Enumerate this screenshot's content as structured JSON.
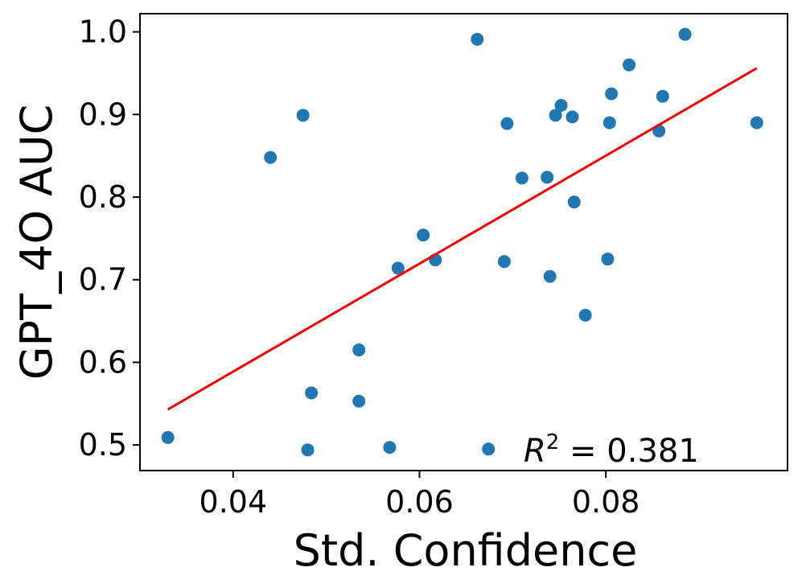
{
  "chart_data": {
    "type": "scatter",
    "xlabel": "Std. Confidence",
    "ylabel": "GPT_4O AUC",
    "xlim": [
      0.03,
      0.0995
    ],
    "ylim": [
      0.469,
      1.022
    ],
    "x_ticks": [
      0.04,
      0.06,
      0.08
    ],
    "x_tick_labels": [
      "0.04",
      "0.06",
      "0.08"
    ],
    "y_ticks": [
      0.5,
      0.6,
      0.7,
      0.8,
      0.9,
      1.0
    ],
    "y_tick_labels": [
      "0.5",
      "0.6",
      "0.7",
      "0.8",
      "0.9",
      "1.0"
    ],
    "grid": false,
    "point_color": "#1f77b4",
    "fit_color": "#ff0000",
    "points": [
      {
        "x": 0.033,
        "y": 0.509
      },
      {
        "x": 0.044,
        "y": 0.848
      },
      {
        "x": 0.0475,
        "y": 0.899
      },
      {
        "x": 0.048,
        "y": 0.494
      },
      {
        "x": 0.0484,
        "y": 0.563
      },
      {
        "x": 0.0535,
        "y": 0.615
      },
      {
        "x": 0.0535,
        "y": 0.553
      },
      {
        "x": 0.0568,
        "y": 0.497
      },
      {
        "x": 0.0577,
        "y": 0.714
      },
      {
        "x": 0.0604,
        "y": 0.754
      },
      {
        "x": 0.0617,
        "y": 0.724
      },
      {
        "x": 0.0662,
        "y": 0.991
      },
      {
        "x": 0.0674,
        "y": 0.495
      },
      {
        "x": 0.0691,
        "y": 0.722
      },
      {
        "x": 0.0694,
        "y": 0.889
      },
      {
        "x": 0.071,
        "y": 0.823
      },
      {
        "x": 0.0737,
        "y": 0.824
      },
      {
        "x": 0.074,
        "y": 0.704
      },
      {
        "x": 0.0746,
        "y": 0.899
      },
      {
        "x": 0.0752,
        "y": 0.911
      },
      {
        "x": 0.0764,
        "y": 0.897
      },
      {
        "x": 0.0766,
        "y": 0.794
      },
      {
        "x": 0.0778,
        "y": 0.657
      },
      {
        "x": 0.0802,
        "y": 0.725
      },
      {
        "x": 0.0804,
        "y": 0.89
      },
      {
        "x": 0.0806,
        "y": 0.925
      },
      {
        "x": 0.0825,
        "y": 0.96
      },
      {
        "x": 0.0857,
        "y": 0.88
      },
      {
        "x": 0.0861,
        "y": 0.922
      },
      {
        "x": 0.0885,
        "y": 0.997
      },
      {
        "x": 0.0962,
        "y": 0.89
      }
    ],
    "fit_line": {
      "x": [
        0.033,
        0.0962
      ],
      "y": [
        0.543,
        0.956
      ]
    },
    "annotation": {
      "prefix": "R",
      "superscript": "2",
      "text": "= 0.381"
    }
  }
}
